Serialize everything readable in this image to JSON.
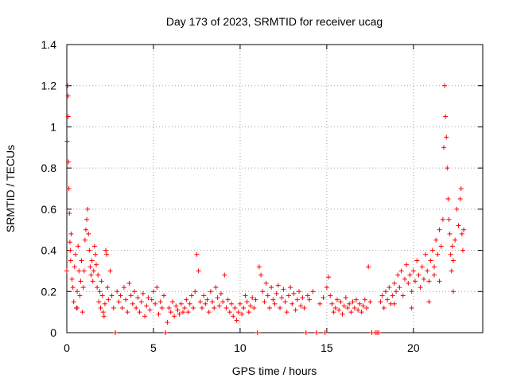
{
  "chart_data": {
    "type": "scatter",
    "title": "Day 173 of 2023, SRMTID for receiver ucag",
    "xlabel": "GPS time / hours",
    "ylabel": "SRMTID / TECUs",
    "xlim": [
      0,
      24
    ],
    "ylim": [
      0,
      1.4
    ],
    "xticks": [
      0,
      5,
      10,
      15,
      20
    ],
    "yticks": [
      0,
      0.2,
      0.4,
      0.6,
      0.8,
      1,
      1.2,
      1.4
    ],
    "ytick_labels": [
      "0",
      "0.2",
      "0.4",
      "0.6",
      "0.8",
      "1",
      "1.2",
      "1.4"
    ],
    "grid": true,
    "marker": "+",
    "series": [
      {
        "name": "SRMTID",
        "color": "#ff0000",
        "points": [
          [
            0.0,
            0.3
          ],
          [
            0.02,
            0.93
          ],
          [
            0.05,
            1.2
          ],
          [
            0.07,
            1.15
          ],
          [
            0.08,
            1.05
          ],
          [
            0.1,
            0.83
          ],
          [
            0.12,
            0.7
          ],
          [
            0.15,
            0.58
          ],
          [
            0.18,
            0.44
          ],
          [
            0.2,
            0.4
          ],
          [
            0.22,
            0.35
          ],
          [
            0.25,
            0.48
          ],
          [
            0.3,
            0.26
          ],
          [
            0.35,
            0.22
          ],
          [
            0.4,
            0.15
          ],
          [
            0.45,
            0.32
          ],
          [
            0.5,
            0.38
          ],
          [
            0.55,
            0.12
          ],
          [
            0.6,
            0.2
          ],
          [
            0.65,
            0.42
          ],
          [
            0.7,
            0.3
          ],
          [
            0.75,
            0.18
          ],
          [
            0.8,
            0.25
          ],
          [
            0.85,
            0.35
          ],
          [
            0.9,
            0.1
          ],
          [
            0.95,
            0.22
          ],
          [
            1.0,
            0.3
          ],
          [
            1.05,
            0.45
          ],
          [
            1.1,
            0.5
          ],
          [
            1.15,
            0.55
          ],
          [
            1.2,
            0.6
          ],
          [
            1.25,
            0.48
          ],
          [
            1.3,
            0.4
          ],
          [
            1.35,
            0.32
          ],
          [
            1.4,
            0.28
          ],
          [
            1.45,
            0.35
          ],
          [
            1.5,
            0.25
          ],
          [
            1.55,
            0.3
          ],
          [
            1.6,
            0.42
          ],
          [
            1.65,
            0.38
          ],
          [
            1.7,
            0.33
          ],
          [
            1.75,
            0.22
          ],
          [
            1.8,
            0.28
          ],
          [
            1.85,
            0.15
          ],
          [
            1.9,
            0.2
          ],
          [
            1.95,
            0.12
          ],
          [
            2.0,
            0.25
          ],
          [
            2.05,
            0.18
          ],
          [
            2.1,
            0.1
          ],
          [
            2.15,
            0.08
          ],
          [
            2.2,
            0.14
          ],
          [
            2.25,
            0.4
          ],
          [
            2.3,
            0.38
          ],
          [
            2.35,
            0.22
          ],
          [
            2.4,
            0.16
          ],
          [
            2.5,
            0.3
          ],
          [
            2.6,
            0.18
          ],
          [
            2.7,
            0.12
          ],
          [
            2.8,
            0.0
          ],
          [
            2.9,
            0.2
          ],
          [
            3.0,
            0.15
          ],
          [
            3.1,
            0.18
          ],
          [
            3.2,
            0.12
          ],
          [
            3.3,
            0.22
          ],
          [
            3.4,
            0.16
          ],
          [
            3.5,
            0.1
          ],
          [
            3.6,
            0.24
          ],
          [
            3.7,
            0.18
          ],
          [
            3.8,
            0.14
          ],
          [
            3.9,
            0.2
          ],
          [
            4.0,
            0.12
          ],
          [
            4.1,
            0.17
          ],
          [
            4.2,
            0.1
          ],
          [
            4.3,
            0.15
          ],
          [
            4.4,
            0.19
          ],
          [
            4.5,
            0.08
          ],
          [
            4.6,
            0.13
          ],
          [
            4.7,
            0.17
          ],
          [
            4.8,
            0.11
          ],
          [
            4.9,
            0.16
          ],
          [
            5.0,
            0.2
          ],
          [
            5.1,
            0.14
          ],
          [
            5.2,
            0.22
          ],
          [
            5.3,
            0.09
          ],
          [
            5.4,
            0.15
          ],
          [
            5.5,
            0.12
          ],
          [
            5.6,
            0.18
          ],
          [
            5.7,
            0.0
          ],
          [
            5.8,
            0.05
          ],
          [
            5.9,
            0.12
          ],
          [
            6.0,
            0.1
          ],
          [
            6.1,
            0.15
          ],
          [
            6.2,
            0.08
          ],
          [
            6.3,
            0.13
          ],
          [
            6.4,
            0.11
          ],
          [
            6.5,
            0.09
          ],
          [
            6.6,
            0.14
          ],
          [
            6.7,
            0.1
          ],
          [
            6.8,
            0.12
          ],
          [
            6.9,
            0.16
          ],
          [
            7.0,
            0.1
          ],
          [
            7.1,
            0.14
          ],
          [
            7.2,
            0.18
          ],
          [
            7.3,
            0.12
          ],
          [
            7.4,
            0.2
          ],
          [
            7.5,
            0.38
          ],
          [
            7.6,
            0.3
          ],
          [
            7.7,
            0.15
          ],
          [
            7.8,
            0.12
          ],
          [
            7.9,
            0.18
          ],
          [
            8.0,
            0.14
          ],
          [
            8.1,
            0.16
          ],
          [
            8.2,
            0.1
          ],
          [
            8.3,
            0.2
          ],
          [
            8.4,
            0.15
          ],
          [
            8.5,
            0.12
          ],
          [
            8.6,
            0.22
          ],
          [
            8.7,
            0.17
          ],
          [
            8.8,
            0.13
          ],
          [
            8.9,
            0.19
          ],
          [
            9.0,
            0.15
          ],
          [
            9.1,
            0.28
          ],
          [
            9.2,
            0.12
          ],
          [
            9.3,
            0.16
          ],
          [
            9.4,
            0.1
          ],
          [
            9.5,
            0.14
          ],
          [
            9.6,
            0.08
          ],
          [
            9.7,
            0.12
          ],
          [
            9.8,
            0.06
          ],
          [
            9.9,
            0.1
          ],
          [
            10.0,
            0.14
          ],
          [
            10.1,
            0.09
          ],
          [
            10.2,
            0.12
          ],
          [
            10.3,
            0.18
          ],
          [
            10.4,
            0.15
          ],
          [
            10.5,
            0.1
          ],
          [
            10.6,
            0.13
          ],
          [
            10.7,
            0.17
          ],
          [
            10.8,
            0.12
          ],
          [
            10.9,
            0.16
          ],
          [
            11.0,
            0.0
          ],
          [
            11.1,
            0.32
          ],
          [
            11.2,
            0.28
          ],
          [
            11.3,
            0.2
          ],
          [
            11.4,
            0.15
          ],
          [
            11.5,
            0.24
          ],
          [
            11.6,
            0.18
          ],
          [
            11.7,
            0.12
          ],
          [
            11.8,
            0.22
          ],
          [
            11.9,
            0.16
          ],
          [
            12.0,
            0.14
          ],
          [
            12.1,
            0.19
          ],
          [
            12.2,
            0.23
          ],
          [
            12.3,
            0.12
          ],
          [
            12.4,
            0.17
          ],
          [
            12.5,
            0.21
          ],
          [
            12.6,
            0.15
          ],
          [
            12.7,
            0.1
          ],
          [
            12.8,
            0.18
          ],
          [
            12.9,
            0.22
          ],
          [
            13.0,
            0.14
          ],
          [
            13.1,
            0.19
          ],
          [
            13.2,
            0.11
          ],
          [
            13.3,
            0.16
          ],
          [
            13.4,
            0.2
          ],
          [
            13.5,
            0.13
          ],
          [
            13.6,
            0.17
          ],
          [
            13.7,
            0.12
          ],
          [
            13.8,
            0.0
          ],
          [
            13.9,
            0.18
          ],
          [
            14.0,
            0.16
          ],
          [
            14.2,
            0.2
          ],
          [
            14.4,
            0.0
          ],
          [
            14.6,
            0.14
          ],
          [
            14.8,
            0.17
          ],
          [
            14.9,
            0.0
          ],
          [
            15.0,
            0.22
          ],
          [
            15.1,
            0.27
          ],
          [
            15.2,
            0.18
          ],
          [
            15.3,
            0.14
          ],
          [
            15.4,
            0.1
          ],
          [
            15.5,
            0.12
          ],
          [
            15.6,
            0.16
          ],
          [
            15.7,
            0.11
          ],
          [
            15.8,
            0.15
          ],
          [
            15.9,
            0.09
          ],
          [
            16.0,
            0.13
          ],
          [
            16.1,
            0.17
          ],
          [
            16.2,
            0.12
          ],
          [
            16.3,
            0.14
          ],
          [
            16.4,
            0.1
          ],
          [
            16.5,
            0.15
          ],
          [
            16.6,
            0.12
          ],
          [
            16.7,
            0.16
          ],
          [
            16.8,
            0.11
          ],
          [
            16.9,
            0.14
          ],
          [
            17.0,
            0.1
          ],
          [
            17.1,
            0.13
          ],
          [
            17.2,
            0.16
          ],
          [
            17.3,
            0.12
          ],
          [
            17.4,
            0.32
          ],
          [
            17.5,
            0.15
          ],
          [
            17.6,
            0.0
          ],
          [
            17.8,
            0.0
          ],
          [
            17.9,
            0.0
          ],
          [
            18.0,
            0.0
          ],
          [
            18.1,
            0.15
          ],
          [
            18.2,
            0.18
          ],
          [
            18.3,
            0.12
          ],
          [
            18.4,
            0.2
          ],
          [
            18.5,
            0.16
          ],
          [
            18.6,
            0.22
          ],
          [
            18.7,
            0.14
          ],
          [
            18.8,
            0.18
          ],
          [
            18.9,
            0.24
          ],
          [
            19.0,
            0.2
          ],
          [
            19.1,
            0.28
          ],
          [
            19.2,
            0.22
          ],
          [
            19.3,
            0.3
          ],
          [
            19.4,
            0.18
          ],
          [
            19.5,
            0.26
          ],
          [
            19.6,
            0.33
          ],
          [
            19.7,
            0.24
          ],
          [
            19.8,
            0.28
          ],
          [
            19.9,
            0.2
          ],
          [
            20.0,
            0.3
          ],
          [
            20.1,
            0.25
          ],
          [
            20.2,
            0.35
          ],
          [
            20.3,
            0.28
          ],
          [
            20.4,
            0.22
          ],
          [
            20.5,
            0.32
          ],
          [
            20.6,
            0.26
          ],
          [
            20.7,
            0.38
          ],
          [
            20.8,
            0.3
          ],
          [
            20.9,
            0.25
          ],
          [
            21.0,
            0.35
          ],
          [
            21.1,
            0.4
          ],
          [
            21.2,
            0.32
          ],
          [
            21.3,
            0.45
          ],
          [
            21.4,
            0.38
          ],
          [
            21.5,
            0.5
          ],
          [
            21.6,
            0.42
          ],
          [
            21.7,
            0.55
          ],
          [
            21.75,
            0.9
          ],
          [
            21.8,
            1.2
          ],
          [
            21.85,
            1.05
          ],
          [
            21.9,
            0.95
          ],
          [
            21.95,
            0.8
          ],
          [
            22.0,
            0.65
          ],
          [
            22.05,
            0.55
          ],
          [
            22.1,
            0.48
          ],
          [
            22.15,
            0.38
          ],
          [
            22.2,
            0.3
          ],
          [
            22.25,
            0.42
          ],
          [
            22.3,
            0.35
          ],
          [
            22.4,
            0.45
          ],
          [
            22.5,
            0.6
          ],
          [
            22.6,
            0.52
          ],
          [
            22.7,
            0.65
          ],
          [
            22.75,
            0.7
          ],
          [
            22.8,
            0.48
          ],
          [
            22.85,
            0.4
          ],
          [
            22.9,
            0.5
          ],
          [
            21.5,
            0.25
          ],
          [
            20.9,
            0.15
          ],
          [
            19.9,
            0.12
          ],
          [
            18.9,
            0.14
          ],
          [
            21.2,
            0.28
          ],
          [
            22.3,
            0.2
          ],
          [
            0.6,
            0.12
          ]
        ]
      }
    ]
  }
}
